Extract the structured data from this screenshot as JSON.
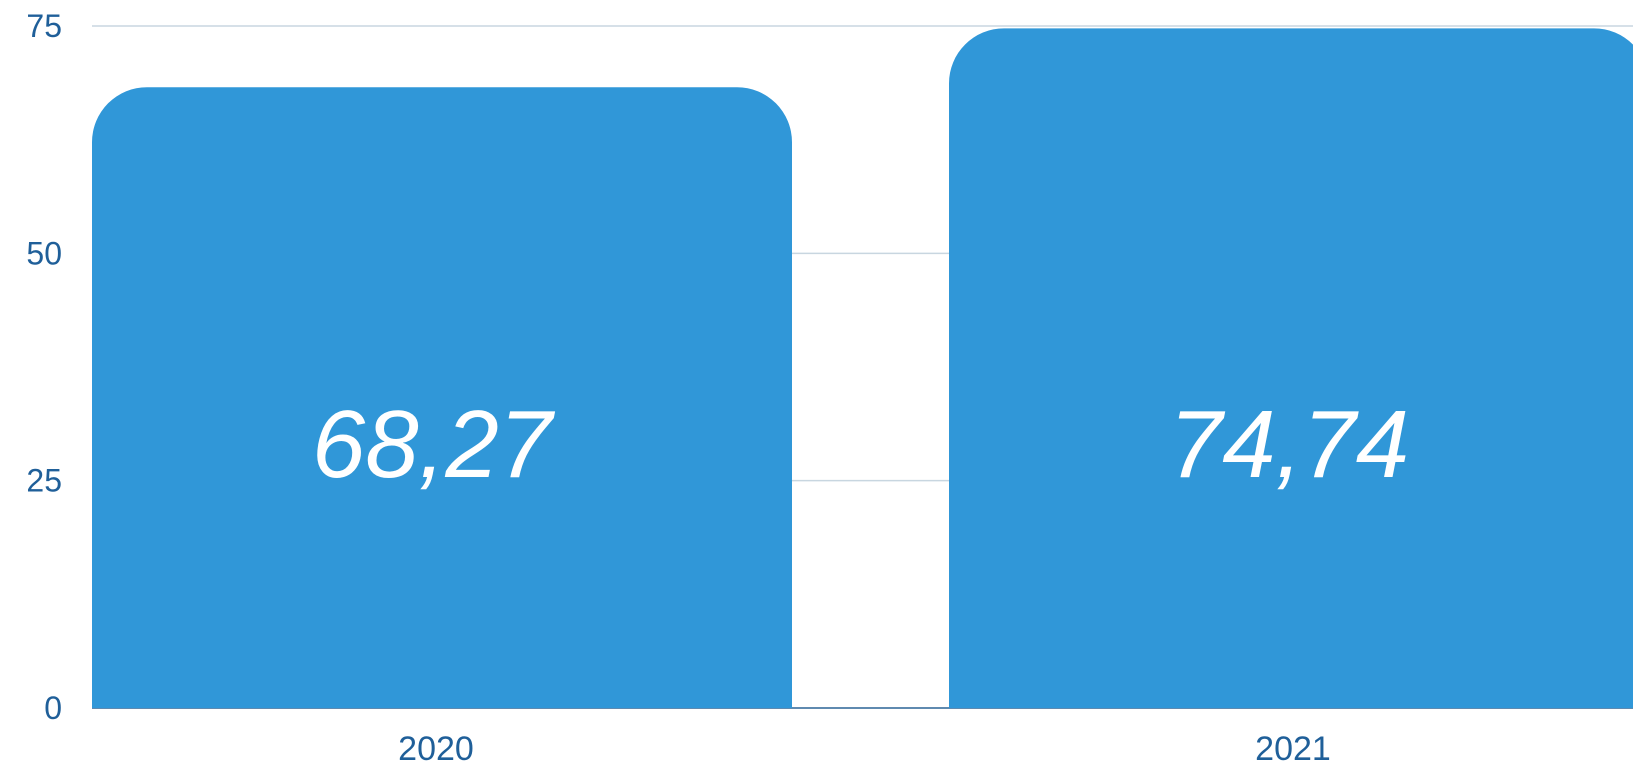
{
  "chart_data": {
    "type": "bar",
    "categories": [
      "2020",
      "2021"
    ],
    "values": [
      68.27,
      74.74
    ],
    "value_labels": [
      "68,27",
      "74,74"
    ],
    "ylim": [
      0,
      75
    ],
    "yticks": [
      "0",
      "25",
      "50",
      "75"
    ],
    "grid": true,
    "legend": "none",
    "title": "",
    "xlabel": "",
    "ylabel": ""
  },
  "colors": {
    "bar": "#3097d8",
    "tick_text": "#1f5f99",
    "grid": "#c8d6e0",
    "label": "#ffffff"
  }
}
